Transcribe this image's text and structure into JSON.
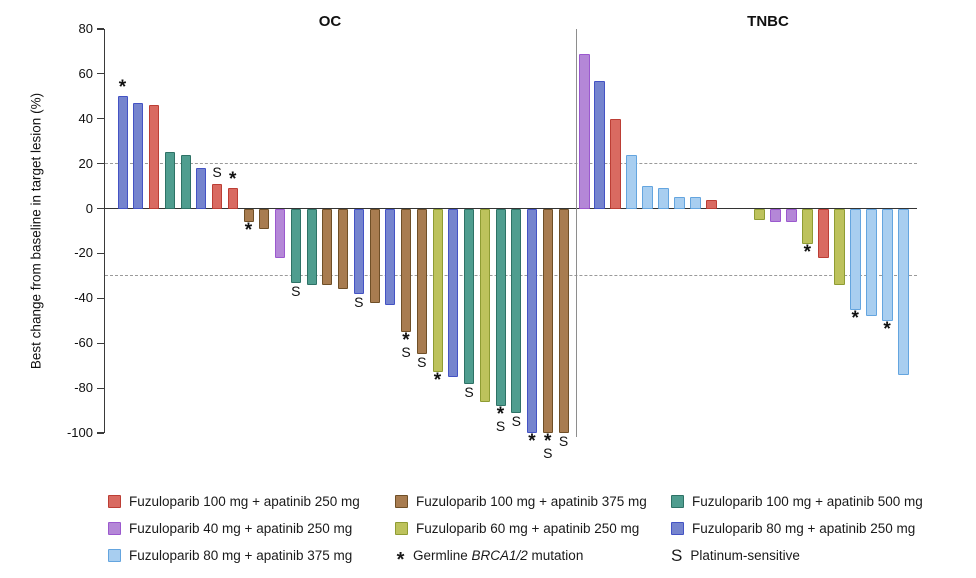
{
  "chart_data": {
    "type": "bar",
    "subtype": "waterfall",
    "ylabel": "Best change from baseline in target lesion (%)",
    "ylim": [
      -100,
      80
    ],
    "yticks": [
      80,
      60,
      40,
      20,
      0,
      -20,
      -40,
      -60,
      -80,
      -100
    ],
    "reference_lines": [
      20,
      -30
    ],
    "grid": false,
    "marker_meanings": {
      "*": "Germline BRCA1/2 mutation",
      "S": "Platinum-sensitive"
    },
    "groups": [
      {
        "id": "fz100_ap250",
        "label": "Fuzuloparib 100 mg + apatinib 250 mg",
        "fill": "#D96A61",
        "stroke": "#BC3E35"
      },
      {
        "id": "fz100_ap375",
        "label": "Fuzuloparib 100 mg + apatinib 375 mg",
        "fill": "#A87C50",
        "stroke": "#6F4F27"
      },
      {
        "id": "fz100_ap500",
        "label": "Fuzuloparib 100 mg + apatinib 500 mg",
        "fill": "#4F9D8F",
        "stroke": "#2E7266"
      },
      {
        "id": "fz40_ap250",
        "label": "Fuzuloparib 40 mg + apatinib 250 mg",
        "fill": "#B487D7",
        "stroke": "#9B59CE"
      },
      {
        "id": "fz60_ap250",
        "label": "Fuzuloparib 60 mg + apatinib 250 mg",
        "fill": "#BDC25C",
        "stroke": "#8F9C33"
      },
      {
        "id": "fz80_ap250",
        "label": "Fuzuloparib 80 mg + apatinib 250 mg",
        "fill": "#7584CE",
        "stroke": "#4453C4"
      },
      {
        "id": "fz80_ap375",
        "label": "Fuzuloparib 80 mg + apatinib 375 mg",
        "fill": "#A8CEF0",
        "stroke": "#64A5DF"
      }
    ],
    "panels": [
      {
        "id": "oc",
        "title": "OC",
        "bars": [
          {
            "g": "fz80_ap250",
            "v": 50,
            "m": "*"
          },
          {
            "g": "fz80_ap250",
            "v": 47
          },
          {
            "g": "fz100_ap250",
            "v": 46
          },
          {
            "g": "fz100_ap500",
            "v": 25
          },
          {
            "g": "fz100_ap500",
            "v": 24
          },
          {
            "g": "fz80_ap250",
            "v": 18
          },
          {
            "g": "fz100_ap250",
            "v": 11,
            "m": "S"
          },
          {
            "g": "fz100_ap250",
            "v": 9,
            "m": "*"
          },
          {
            "g": "fz100_ap375",
            "v": -6,
            "m": "*"
          },
          {
            "g": "fz100_ap375",
            "v": -9
          },
          {
            "g": "fz40_ap250",
            "v": -22
          },
          {
            "g": "fz100_ap500",
            "v": -33,
            "m": "S"
          },
          {
            "g": "fz100_ap500",
            "v": -34
          },
          {
            "g": "fz100_ap375",
            "v": -34
          },
          {
            "g": "fz100_ap375",
            "v": -36
          },
          {
            "g": "fz80_ap250",
            "v": -38,
            "m": "S"
          },
          {
            "g": "fz100_ap375",
            "v": -42
          },
          {
            "g": "fz80_ap250",
            "v": -43
          },
          {
            "g": "fz100_ap375",
            "v": -55,
            "m": "*S"
          },
          {
            "g": "fz100_ap375",
            "v": -65,
            "m": "S"
          },
          {
            "g": "fz60_ap250",
            "v": -73,
            "m": "*"
          },
          {
            "g": "fz80_ap250",
            "v": -75
          },
          {
            "g": "fz100_ap500",
            "v": -78,
            "m": "S"
          },
          {
            "g": "fz60_ap250",
            "v": -86
          },
          {
            "g": "fz100_ap500",
            "v": -88,
            "m": "*S"
          },
          {
            "g": "fz100_ap500",
            "v": -91,
            "m": "S"
          },
          {
            "g": "fz80_ap250",
            "v": -100,
            "m": "*"
          },
          {
            "g": "fz100_ap375",
            "v": -100,
            "m": "*S"
          },
          {
            "g": "fz100_ap375",
            "v": -100,
            "m": "S"
          }
        ]
      },
      {
        "id": "tnbc",
        "title": "TNBC",
        "bars": [
          {
            "g": "fz40_ap250",
            "v": 69
          },
          {
            "g": "fz80_ap250",
            "v": 57
          },
          {
            "g": "fz100_ap250",
            "v": 40
          },
          {
            "g": "fz80_ap375",
            "v": 24
          },
          {
            "g": "fz80_ap375",
            "v": 10
          },
          {
            "g": "fz80_ap375",
            "v": 9
          },
          {
            "g": "fz80_ap375",
            "v": 5
          },
          {
            "g": "fz80_ap375",
            "v": 5
          },
          {
            "g": "fz100_ap250",
            "v": 4
          },
          {
            "g": null,
            "v": 0
          },
          {
            "g": null,
            "v": 0
          },
          {
            "g": "fz60_ap250",
            "v": -5
          },
          {
            "g": "fz40_ap250",
            "v": -6
          },
          {
            "g": "fz40_ap250",
            "v": -6
          },
          {
            "g": "fz60_ap250",
            "v": -16,
            "m": "*"
          },
          {
            "g": "fz100_ap250",
            "v": -22
          },
          {
            "g": "fz60_ap250",
            "v": -34
          },
          {
            "g": "fz80_ap375",
            "v": -45,
            "m": "*"
          },
          {
            "g": "fz80_ap375",
            "v": -48
          },
          {
            "g": "fz80_ap375",
            "v": -50,
            "m": "*"
          },
          {
            "g": "fz80_ap375",
            "v": -74
          }
        ]
      }
    ],
    "legend": {
      "rows": [
        [
          {
            "swatch": "fz100_ap250"
          },
          {
            "swatch": "fz100_ap375"
          },
          {
            "swatch": "fz100_ap500"
          }
        ],
        [
          {
            "swatch": "fz40_ap250"
          },
          {
            "swatch": "fz60_ap250"
          },
          {
            "swatch": "fz80_ap250"
          }
        ],
        [
          {
            "swatch": "fz80_ap375"
          },
          {
            "symbol": "*",
            "text_before": "Germline ",
            "text_italic": "BRCA1/2",
            "text_after": " mutation"
          },
          {
            "symbol": "S",
            "text_before": "Platinum-sensitive",
            "text_italic": "",
            "text_after": ""
          }
        ]
      ]
    }
  }
}
